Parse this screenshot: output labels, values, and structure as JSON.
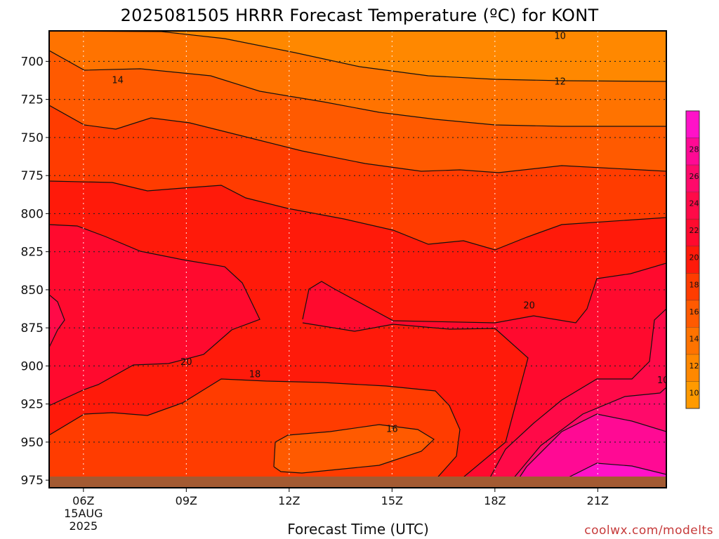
{
  "chart_data": {
    "type": "heatmap",
    "title": "2025081505 HRRR Forecast Temperature (ºC) for KONT",
    "xlabel": "Forecast Time (UTC)",
    "ylabel": "",
    "x_ticks": [
      {
        "hour": 6,
        "label": "06Z",
        "date": "15AUG",
        "year": "2025"
      },
      {
        "hour": 9,
        "label": "09Z"
      },
      {
        "hour": 12,
        "label": "12Z"
      },
      {
        "hour": 15,
        "label": "15Z"
      },
      {
        "hour": 18,
        "label": "18Z"
      },
      {
        "hour": 21,
        "label": "21Z"
      }
    ],
    "xlim": [
      5,
      23
    ],
    "y_ticks": [
      700,
      725,
      750,
      775,
      800,
      825,
      850,
      875,
      900,
      925,
      950,
      975
    ],
    "ylim": [
      680,
      980
    ],
    "y_scale": "pressure (increasing downward)",
    "grid": true,
    "colorbar": {
      "placement": "right",
      "ticks": [
        10,
        12,
        14,
        16,
        18,
        20,
        22,
        24,
        26,
        28
      ],
      "range": [
        8,
        30
      ]
    },
    "temperature_bands": [
      {
        "min": 8,
        "max": 10,
        "color": "#ff9a00"
      },
      {
        "min": 10,
        "max": 12,
        "color": "#ff8800"
      },
      {
        "min": 12,
        "max": 14,
        "color": "#ff7300"
      },
      {
        "min": 14,
        "max": 16,
        "color": "#ff5a00"
      },
      {
        "min": 16,
        "max": 18,
        "color": "#ff3c00"
      },
      {
        "min": 18,
        "max": 20,
        "color": "#ff1a0a"
      },
      {
        "min": 20,
        "max": 22,
        "color": "#ff0a2e"
      },
      {
        "min": 22,
        "max": 24,
        "color": "#ff0a48"
      },
      {
        "min": 24,
        "max": 26,
        "color": "#ff0a6a"
      },
      {
        "min": 26,
        "max": 28,
        "color": "#ff0a94"
      },
      {
        "min": 28,
        "max": 30,
        "color": "#ff12c8"
      }
    ],
    "isotherm_labels": [
      {
        "value": "10",
        "hour": 19.9,
        "pressure": 683
      },
      {
        "value": "12",
        "hour": 19.9,
        "pressure": 713
      },
      {
        "value": "14",
        "hour": 7.0,
        "pressure": 712
      },
      {
        "value": "20",
        "hour": 9.0,
        "pressure": 897
      },
      {
        "value": "18",
        "hour": 11.0,
        "pressure": 905
      },
      {
        "value": "16",
        "hour": 15.0,
        "pressure": 941
      },
      {
        "value": "20",
        "hour": 19.0,
        "pressure": 860
      },
      {
        "value": "10",
        "hour": 22.9,
        "pressure": 909
      }
    ],
    "ground_color": "#a35a32",
    "watermark": "coolwx.com/modelts"
  }
}
